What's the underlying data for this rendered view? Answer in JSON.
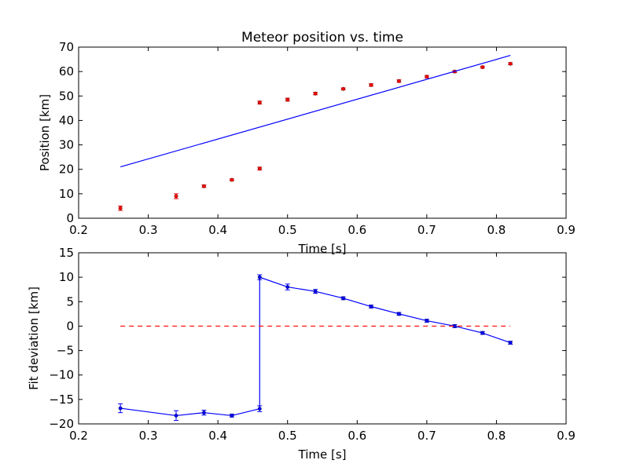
{
  "chart_data": [
    {
      "type": "scatter",
      "title": "Meteor position vs. time",
      "xlabel": "Time [s]",
      "ylabel": "Position [km]",
      "xlim": [
        0.2,
        0.9
      ],
      "ylim": [
        0,
        70
      ],
      "xticks": [
        "0.2",
        "0.3",
        "0.4",
        "0.5",
        "0.6",
        "0.7",
        "0.8",
        "0.9"
      ],
      "yticks": [
        "0",
        "10",
        "20",
        "30",
        "40",
        "50",
        "60",
        "70"
      ],
      "grid": false,
      "series": [
        {
          "kind": "errorbar-points",
          "color": "#ff0000",
          "x": [
            0.26,
            0.34,
            0.38,
            0.42,
            0.46,
            0.46,
            0.5,
            0.54,
            0.58,
            0.62,
            0.66,
            0.7,
            0.74,
            0.78,
            0.82
          ],
          "y": [
            4.1,
            9.0,
            13.1,
            15.7,
            20.3,
            47.3,
            48.5,
            51.0,
            52.9,
            54.5,
            56.1,
            57.9,
            60.0,
            61.8,
            63.2
          ],
          "yerr": [
            0.9,
            1.0,
            0.5,
            0.4,
            0.6,
            0.6,
            0.6,
            0.5,
            0.4,
            0.5,
            0.5,
            0.5,
            0.4,
            0.4,
            0.4
          ]
        },
        {
          "kind": "line",
          "color": "#0000ff",
          "x": [
            0.26,
            0.82
          ],
          "y": [
            21.0,
            66.6
          ]
        }
      ]
    },
    {
      "type": "line",
      "title": "",
      "xlabel": "Time [s]",
      "ylabel": "Fit deviation [km]",
      "xlim": [
        0.2,
        0.9
      ],
      "ylim": [
        -20,
        15
      ],
      "xticks": [
        "0.2",
        "0.3",
        "0.4",
        "0.5",
        "0.6",
        "0.7",
        "0.8",
        "0.9"
      ],
      "yticks": [
        "−20",
        "−15",
        "−10",
        "−5",
        "0",
        "5",
        "10",
        "15"
      ],
      "grid": false,
      "series": [
        {
          "kind": "errorbar-line",
          "color": "#0000ff",
          "x": [
            0.26,
            0.34,
            0.38,
            0.42,
            0.46,
            0.46,
            0.5,
            0.54,
            0.58,
            0.62,
            0.66,
            0.7,
            0.74,
            0.78,
            0.82
          ],
          "y": [
            -16.8,
            -18.3,
            -17.7,
            -18.3,
            -16.9,
            10.0,
            8.0,
            7.1,
            5.7,
            4.0,
            2.5,
            1.1,
            0.0,
            -1.4,
            -3.4
          ],
          "yerr": [
            0.9,
            1.0,
            0.5,
            0.3,
            0.6,
            0.5,
            0.6,
            0.4,
            0.3,
            0.3,
            0.3,
            0.3,
            0.3,
            0.3,
            0.3
          ]
        },
        {
          "kind": "dashed-line",
          "color": "#ff0000",
          "x": [
            0.26,
            0.82
          ],
          "y": [
            0,
            0
          ]
        }
      ]
    }
  ]
}
